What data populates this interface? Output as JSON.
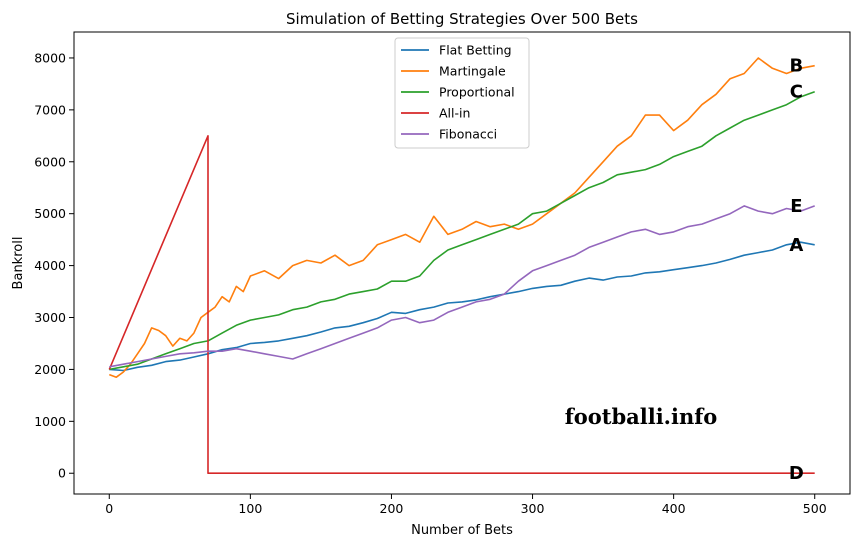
{
  "chart_data": {
    "type": "line",
    "title": "Simulation of Betting Strategies Over 500 Bets",
    "xlabel": "Number of Bets",
    "ylabel": "Bankroll",
    "xlim": [
      -25,
      525
    ],
    "ylim": [
      -400,
      8500
    ],
    "xticks": [
      0,
      100,
      200,
      300,
      400,
      500
    ],
    "yticks": [
      0,
      1000,
      2000,
      3000,
      4000,
      5000,
      6000,
      7000,
      8000
    ],
    "grid": false,
    "legend_position": "top-center",
    "series": [
      {
        "name": "Flat Betting",
        "color": "#1f77b4",
        "label": "A",
        "x": [
          0,
          10,
          20,
          30,
          40,
          50,
          60,
          70,
          80,
          90,
          100,
          110,
          120,
          130,
          140,
          150,
          160,
          170,
          180,
          190,
          200,
          210,
          220,
          230,
          240,
          250,
          260,
          270,
          280,
          290,
          300,
          310,
          320,
          330,
          340,
          350,
          360,
          370,
          380,
          390,
          400,
          410,
          420,
          430,
          440,
          450,
          460,
          470,
          480,
          490,
          500
        ],
        "values": [
          2000,
          1980,
          2040,
          2080,
          2150,
          2180,
          2240,
          2300,
          2380,
          2420,
          2500,
          2520,
          2550,
          2600,
          2650,
          2720,
          2800,
          2830,
          2900,
          2980,
          3100,
          3080,
          3150,
          3200,
          3280,
          3300,
          3340,
          3400,
          3450,
          3500,
          3560,
          3600,
          3620,
          3700,
          3760,
          3720,
          3780,
          3800,
          3860,
          3880,
          3920,
          3960,
          4000,
          4050,
          4120,
          4200,
          4250,
          4300,
          4400,
          4450,
          4400
        ]
      },
      {
        "name": "Martingale",
        "color": "#ff7f0e",
        "label": "B",
        "x": [
          0,
          5,
          10,
          15,
          20,
          25,
          30,
          35,
          40,
          45,
          50,
          55,
          60,
          65,
          70,
          75,
          80,
          85,
          90,
          95,
          100,
          110,
          120,
          130,
          140,
          150,
          160,
          170,
          180,
          190,
          200,
          210,
          220,
          230,
          240,
          250,
          260,
          270,
          280,
          290,
          300,
          310,
          320,
          330,
          340,
          350,
          360,
          370,
          380,
          390,
          400,
          410,
          420,
          430,
          440,
          450,
          460,
          470,
          480,
          490,
          500
        ],
        "values": [
          1900,
          1850,
          1950,
          2100,
          2300,
          2500,
          2800,
          2750,
          2650,
          2450,
          2600,
          2550,
          2700,
          3000,
          3100,
          3200,
          3400,
          3300,
          3600,
          3500,
          3800,
          3900,
          3750,
          4000,
          4100,
          4050,
          4200,
          4000,
          4100,
          4400,
          4500,
          4600,
          4450,
          4950,
          4600,
          4700,
          4850,
          4750,
          4800,
          4700,
          4800,
          5000,
          5200,
          5400,
          5700,
          6000,
          6300,
          6500,
          6900,
          6900,
          6600,
          6800,
          7100,
          7300,
          7600,
          7700,
          8000,
          7800,
          7700,
          7800,
          7850
        ]
      },
      {
        "name": "Proportional",
        "color": "#2ca02c",
        "label": "C",
        "x": [
          0,
          10,
          20,
          30,
          40,
          50,
          60,
          70,
          80,
          90,
          100,
          110,
          120,
          130,
          140,
          150,
          160,
          170,
          180,
          190,
          200,
          210,
          220,
          230,
          240,
          250,
          260,
          270,
          280,
          290,
          300,
          310,
          320,
          330,
          340,
          350,
          360,
          370,
          380,
          390,
          400,
          410,
          420,
          430,
          440,
          450,
          460,
          470,
          480,
          490,
          500
        ],
        "values": [
          2000,
          2050,
          2100,
          2200,
          2300,
          2400,
          2500,
          2550,
          2700,
          2850,
          2950,
          3000,
          3050,
          3150,
          3200,
          3300,
          3350,
          3450,
          3500,
          3550,
          3700,
          3700,
          3800,
          4100,
          4300,
          4400,
          4500,
          4600,
          4700,
          4800,
          5000,
          5050,
          5200,
          5350,
          5500,
          5600,
          5750,
          5800,
          5850,
          5950,
          6100,
          6200,
          6300,
          6500,
          6650,
          6800,
          6900,
          7000,
          7100,
          7250,
          7350
        ]
      },
      {
        "name": "All-in",
        "color": "#d62728",
        "label": "D",
        "x": [
          0,
          70,
          70,
          500
        ],
        "values": [
          2000,
          6500,
          0,
          0
        ]
      },
      {
        "name": "Fibonacci",
        "color": "#9467bd",
        "label": "E",
        "x": [
          0,
          10,
          20,
          30,
          40,
          50,
          60,
          70,
          80,
          90,
          100,
          110,
          120,
          130,
          140,
          150,
          160,
          170,
          180,
          190,
          200,
          210,
          220,
          230,
          240,
          250,
          260,
          270,
          280,
          290,
          300,
          310,
          320,
          330,
          340,
          350,
          360,
          370,
          380,
          390,
          400,
          410,
          420,
          430,
          440,
          450,
          460,
          470,
          480,
          490,
          500
        ],
        "values": [
          2050,
          2100,
          2150,
          2200,
          2250,
          2300,
          2320,
          2350,
          2350,
          2400,
          2350,
          2300,
          2250,
          2200,
          2300,
          2400,
          2500,
          2600,
          2700,
          2800,
          2950,
          3000,
          2900,
          2950,
          3100,
          3200,
          3300,
          3350,
          3450,
          3700,
          3900,
          4000,
          4100,
          4200,
          4350,
          4450,
          4550,
          4650,
          4700,
          4600,
          4650,
          4750,
          4800,
          4900,
          5000,
          5150,
          5050,
          5000,
          5100,
          5050,
          5150
        ]
      }
    ]
  },
  "watermark": "footballi.info"
}
